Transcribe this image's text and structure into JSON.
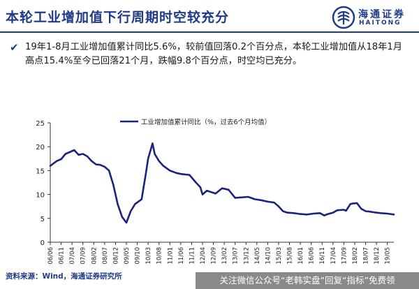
{
  "header": {
    "title": "本轮工业增加值下行周期时空较充分",
    "logo_cn": "海通证券",
    "logo_en": "HAITONG",
    "accent_color": "#1f3a8a"
  },
  "bullet": {
    "icon": "check-icon",
    "text": "19年1-8月工业增加值累计同比5.6%，较前值回落0.2个百分点，本轮工业增加值从18年1月高点15.4%至今已回落21个月，跌幅9.8个百分点，时空均已充分。"
  },
  "source": "资料来源：Wind，海通证券研究所",
  "watermark": "关注微信公众号“老韩实盘”回复“指标”免费领",
  "chart_data": {
    "type": "line",
    "title": "",
    "xlabel": "",
    "ylabel": "",
    "ylim": [
      0,
      25
    ],
    "yticks": [
      0,
      5,
      10,
      15,
      20,
      25
    ],
    "grid": false,
    "legend_position": "top-center",
    "line_color": "#1a237e",
    "series": [
      {
        "name": "工业增加值累计同比（%，过去6个月均值）",
        "points": [
          [
            "06/06",
            16.0
          ],
          [
            "06/09",
            17.0
          ],
          [
            "06/11",
            17.4
          ],
          [
            "07/01",
            18.5
          ],
          [
            "07/05",
            19.3
          ],
          [
            "07/07",
            18.3
          ],
          [
            "07/09",
            18.5
          ],
          [
            "07/11",
            18.0
          ],
          [
            "08/01",
            17.0
          ],
          [
            "08/03",
            16.3
          ],
          [
            "08/05",
            16.2
          ],
          [
            "08/07",
            15.8
          ],
          [
            "08/09",
            15.0
          ],
          [
            "08/11",
            12.0
          ],
          [
            "09/01",
            8.0
          ],
          [
            "09/03",
            5.3
          ],
          [
            "09/05",
            4.1
          ],
          [
            "09/07",
            6.5
          ],
          [
            "09/09",
            8.0
          ],
          [
            "09/12",
            9.0
          ],
          [
            "10/02",
            14.5
          ],
          [
            "10/03",
            17.5
          ],
          [
            "10/05",
            20.7
          ],
          [
            "10/06",
            18.5
          ],
          [
            "10/08",
            17.0
          ],
          [
            "10/10",
            16.0
          ],
          [
            "11/01",
            15.0
          ],
          [
            "11/04",
            14.5
          ],
          [
            "11/06",
            14.3
          ],
          [
            "11/08",
            14.2
          ],
          [
            "11/10",
            14.1
          ],
          [
            "12/01",
            12.5
          ],
          [
            "12/03",
            11.5
          ],
          [
            "12/04",
            10.0
          ],
          [
            "12/06",
            10.8
          ],
          [
            "12/08",
            10.5
          ],
          [
            "12/10",
            10.2
          ],
          [
            "13/01",
            11.3
          ],
          [
            "13/04",
            11.0
          ],
          [
            "13/07",
            9.3
          ],
          [
            "14/01",
            9.5
          ],
          [
            "14/04",
            9.0
          ],
          [
            "14/07",
            8.8
          ],
          [
            "14/10",
            8.5
          ],
          [
            "15/01",
            8.3
          ],
          [
            "15/03",
            7.5
          ],
          [
            "15/05",
            6.5
          ],
          [
            "15/07",
            6.2
          ],
          [
            "15/10",
            6.1
          ],
          [
            "16/01",
            5.9
          ],
          [
            "16/04",
            5.8
          ],
          [
            "16/07",
            6.0
          ],
          [
            "16/10",
            6.1
          ],
          [
            "16/12",
            5.6
          ],
          [
            "17/01",
            5.8
          ],
          [
            "17/04",
            6.2
          ],
          [
            "17/06",
            6.7
          ],
          [
            "17/09",
            6.8
          ],
          [
            "17/10",
            6.6
          ],
          [
            "17/12",
            8.0
          ],
          [
            "18/01",
            8.1
          ],
          [
            "18/03",
            8.2
          ],
          [
            "18/05",
            7.0
          ],
          [
            "18/07",
            6.5
          ],
          [
            "18/09",
            6.4
          ],
          [
            "18/12",
            6.2
          ],
          [
            "19/02",
            6.1
          ],
          [
            "19/05",
            6.0
          ],
          [
            "19/08",
            5.8
          ]
        ]
      }
    ],
    "x_tick_labels": [
      "06/06",
      "06/11",
      "07/04",
      "07/09",
      "08/02",
      "08/07",
      "08/12",
      "09/05",
      "09/10",
      "10/03",
      "10/08",
      "11/01",
      "11/06",
      "11/11",
      "12/04",
      "12/09",
      "13/02",
      "13/07",
      "13/12",
      "14/05",
      "14/10",
      "15/03",
      "15/08",
      "16/01",
      "16/06",
      "16/11",
      "17/04",
      "17/09",
      "18/02",
      "18/07",
      "18/12",
      "19/05"
    ]
  }
}
